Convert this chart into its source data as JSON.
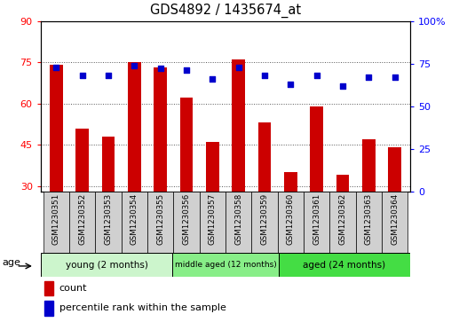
{
  "title": "GDS4892 / 1435674_at",
  "samples": [
    "GSM1230351",
    "GSM1230352",
    "GSM1230353",
    "GSM1230354",
    "GSM1230355",
    "GSM1230356",
    "GSM1230357",
    "GSM1230358",
    "GSM1230359",
    "GSM1230360",
    "GSM1230361",
    "GSM1230362",
    "GSM1230363",
    "GSM1230364"
  ],
  "bar_values": [
    74,
    51,
    48,
    75,
    73,
    62,
    46,
    76,
    53,
    35,
    59,
    34,
    47,
    44
  ],
  "percentile_values": [
    73,
    68,
    68,
    74,
    72,
    71,
    66,
    73,
    68,
    63,
    68,
    62,
    67,
    67
  ],
  "bar_color": "#cc0000",
  "dot_color": "#0000cc",
  "ylim_left": [
    28,
    90
  ],
  "ylim_right": [
    0,
    100
  ],
  "yticks_left": [
    30,
    45,
    60,
    75,
    90
  ],
  "yticks_right": [
    0,
    25,
    50,
    75,
    100
  ],
  "ytick_labels_right": [
    "0",
    "25",
    "50",
    "75",
    "100%"
  ],
  "groups": [
    {
      "label": "young (2 months)",
      "start": 0,
      "end": 5,
      "color": "#ccf5cc"
    },
    {
      "label": "middle aged (12 months)",
      "start": 5,
      "end": 9,
      "color": "#88ee88"
    },
    {
      "label": "aged (24 months)",
      "start": 9,
      "end": 14,
      "color": "#44dd44"
    }
  ],
  "age_label": "age",
  "legend_bar_label": "count",
  "legend_dot_label": "percentile rank within the sample",
  "grid_color": "#555555",
  "bar_width": 0.5,
  "xlabel_bg": "#d0d0d0",
  "plot_bg": "#ffffff"
}
